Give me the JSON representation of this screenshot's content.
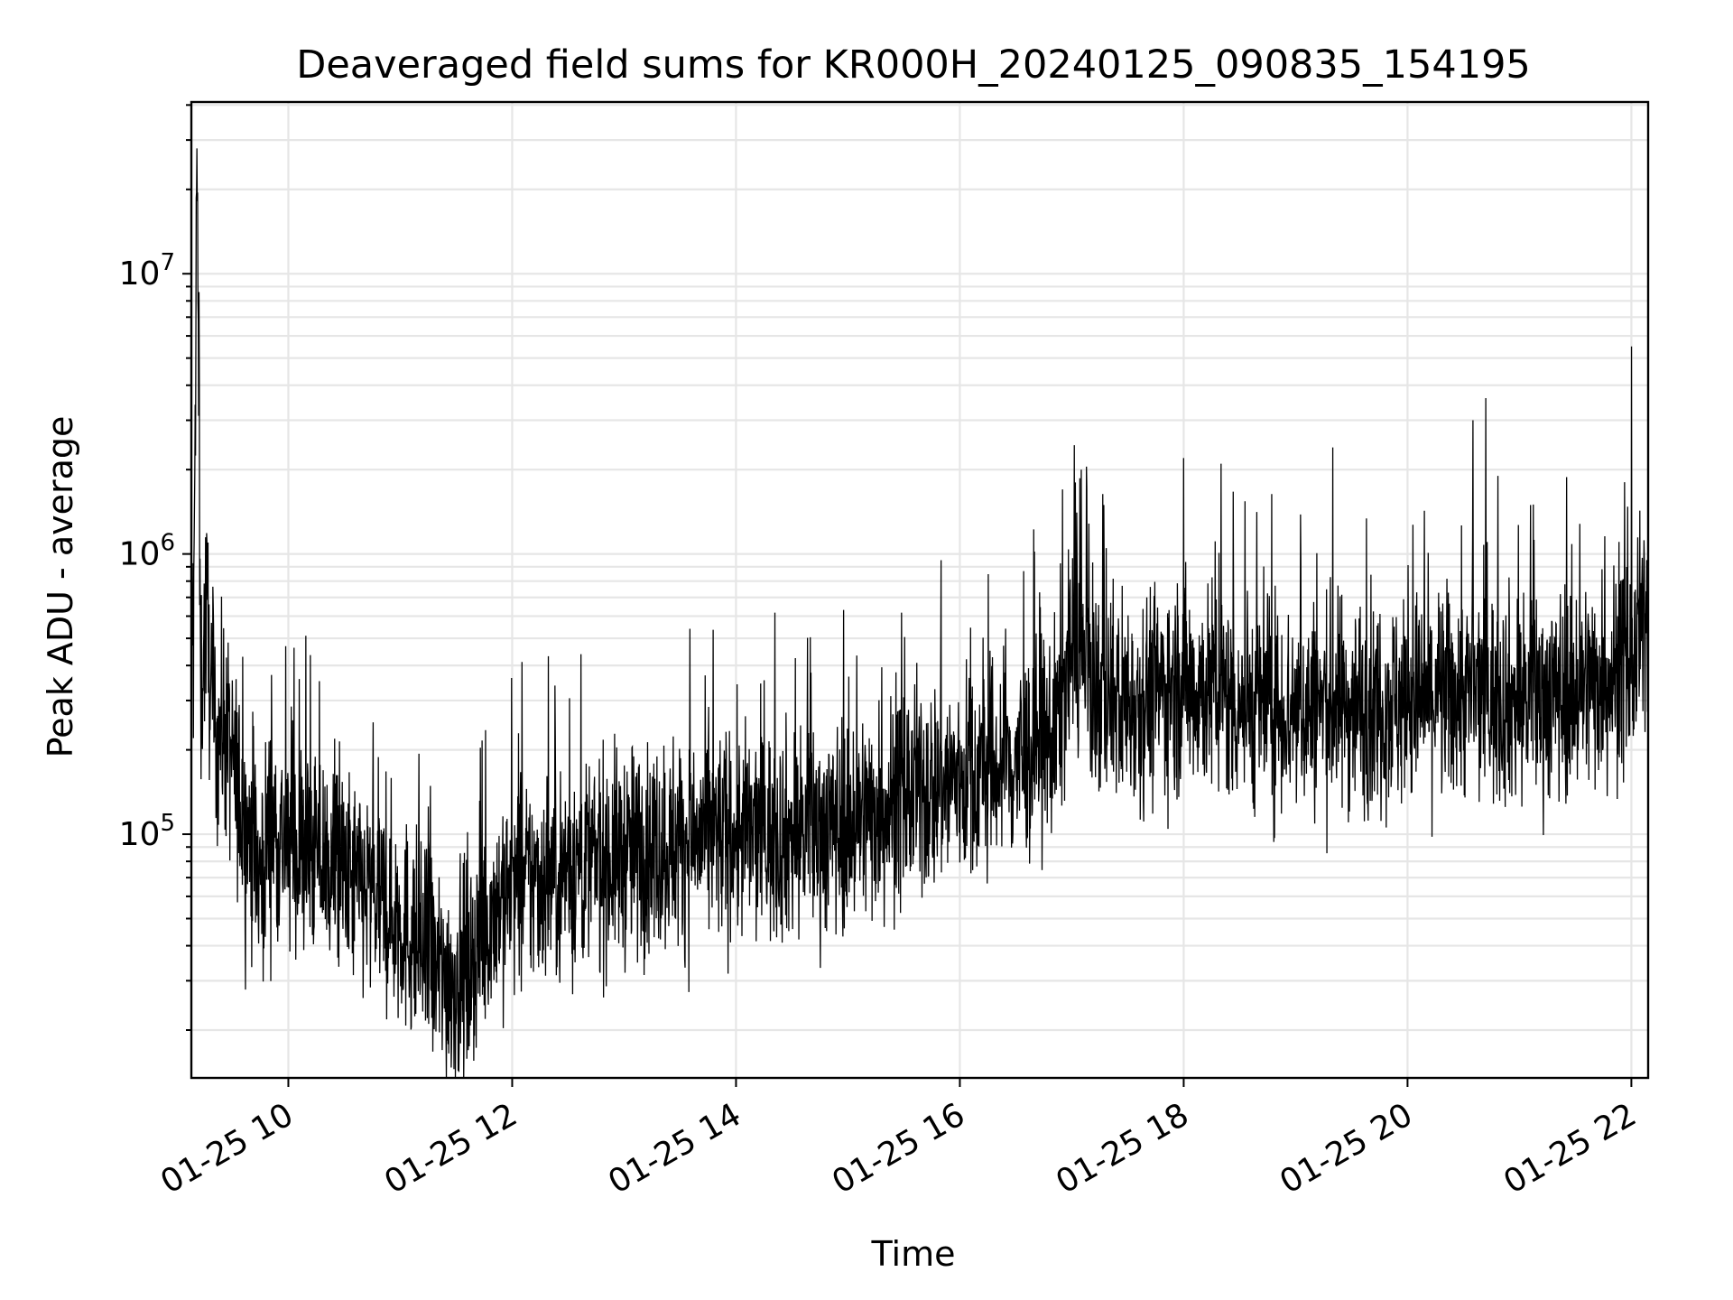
{
  "chart_data": {
    "type": "line",
    "title": "Deaveraged field sums for KR000H_20240125_090835_154195",
    "xlabel": "Time",
    "ylabel": "Peak ADU - average",
    "x_axis": {
      "kind": "time",
      "range": [
        "2024-01-25 09:08",
        "2024-01-25 22:09"
      ],
      "ticks": [
        {
          "time": "2024-01-25 10:00",
          "label": "01-25 10"
        },
        {
          "time": "2024-01-25 12:00",
          "label": "01-25 12"
        },
        {
          "time": "2024-01-25 14:00",
          "label": "01-25 14"
        },
        {
          "time": "2024-01-25 16:00",
          "label": "01-25 16"
        },
        {
          "time": "2024-01-25 18:00",
          "label": "01-25 18"
        },
        {
          "time": "2024-01-25 20:00",
          "label": "01-25 20"
        },
        {
          "time": "2024-01-25 22:00",
          "label": "01-25 22"
        }
      ]
    },
    "y_axis": {
      "scale": "log",
      "range": [
        13500,
        41000000
      ],
      "ticks": [
        {
          "value": 100000,
          "base": "10",
          "exp": "5"
        },
        {
          "value": 1000000,
          "base": "10",
          "exp": "6"
        },
        {
          "value": 10000000,
          "base": "10",
          "exp": "7"
        }
      ]
    },
    "grid": true,
    "line_color": "#000000",
    "series": [
      {
        "name": "",
        "points": [
          [
            "2024-01-25 09:09",
            250000
          ],
          [
            "2024-01-25 09:11",
            28000000
          ],
          [
            "2024-01-25 09:13",
            300000
          ],
          [
            "2024-01-25 09:16",
            650000
          ],
          [
            "2024-01-25 09:20",
            220000
          ],
          [
            "2024-01-25 09:25",
            250000
          ],
          [
            "2024-01-25 09:30",
            180000
          ],
          [
            "2024-01-25 09:35",
            120000
          ],
          [
            "2024-01-25 09:40",
            100000
          ],
          [
            "2024-01-25 09:45",
            70000
          ],
          [
            "2024-01-25 09:50",
            110000
          ],
          [
            "2024-01-25 10:00",
            90000
          ],
          [
            "2024-01-25 10:15",
            85000
          ],
          [
            "2024-01-25 10:30",
            70000
          ],
          [
            "2024-01-25 10:45",
            60000
          ],
          [
            "2024-01-25 11:00",
            50000
          ],
          [
            "2024-01-25 11:10",
            40000
          ],
          [
            "2024-01-25 11:20",
            32000
          ],
          [
            "2024-01-25 11:30",
            30000
          ],
          [
            "2024-01-25 11:40",
            38000
          ],
          [
            "2024-01-25 11:50",
            55000
          ],
          [
            "2024-01-25 12:00",
            65000
          ],
          [
            "2024-01-25 12:15",
            70000
          ],
          [
            "2024-01-25 12:30",
            75000
          ],
          [
            "2024-01-25 12:45",
            80000
          ],
          [
            "2024-01-25 13:00",
            85000
          ],
          [
            "2024-01-25 13:30",
            95000
          ],
          [
            "2024-01-25 14:00",
            100000
          ],
          [
            "2024-01-25 14:30",
            100000
          ],
          [
            "2024-01-25 15:00",
            110000
          ],
          [
            "2024-01-25 15:30",
            135000
          ],
          [
            "2024-01-25 16:00",
            160000
          ],
          [
            "2024-01-25 16:30",
            180000
          ],
          [
            "2024-01-25 16:50",
            220000
          ],
          [
            "2024-01-25 17:00",
            450000
          ],
          [
            "2024-01-25 17:15",
            320000
          ],
          [
            "2024-01-25 17:30",
            300000
          ],
          [
            "2024-01-25 18:00",
            350000
          ],
          [
            "2024-01-25 18:30",
            300000
          ],
          [
            "2024-01-25 19:00",
            280000
          ],
          [
            "2024-01-25 19:30",
            290000
          ],
          [
            "2024-01-25 20:00",
            300000
          ],
          [
            "2024-01-25 20:30",
            320000
          ],
          [
            "2024-01-25 21:00",
            300000
          ],
          [
            "2024-01-25 21:30",
            330000
          ],
          [
            "2024-01-25 22:00",
            400000
          ],
          [
            "2024-01-25 22:09",
            600000
          ]
        ]
      }
    ],
    "peaks": [
      [
        "2024-01-25 17:05",
        2000000
      ],
      [
        "2024-01-25 18:00",
        2200000
      ],
      [
        "2024-01-25 18:20",
        2100000
      ],
      [
        "2024-01-25 19:20",
        2400000
      ],
      [
        "2024-01-25 20:35",
        3000000
      ],
      [
        "2024-01-25 20:42",
        3600000
      ],
      [
        "2024-01-25 22:00",
        5500000
      ],
      [
        "2024-01-25 15:50",
        950000
      ],
      [
        "2024-01-25 16:55",
        1700000
      ]
    ]
  }
}
